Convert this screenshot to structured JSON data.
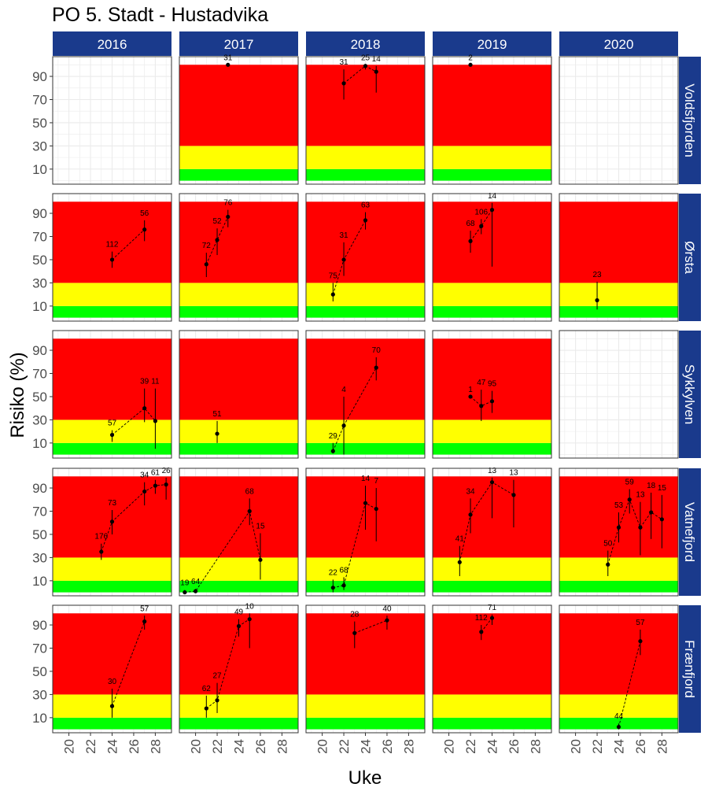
{
  "chart_data": {
    "type": "scatter",
    "title": "PO 5. Stadt - Hustadvika",
    "xlabel": "Uke",
    "ylabel": "Risiko (%)",
    "xlim": [
      18.5,
      29.5
    ],
    "ylim": [
      -3,
      107
    ],
    "x_ticks": [
      20,
      22,
      24,
      26,
      28
    ],
    "y_ticks": [
      10,
      30,
      50,
      70,
      90
    ],
    "grid": true,
    "risk_bands": [
      {
        "from": 0,
        "to": 10,
        "color": "#00ff00"
      },
      {
        "from": 10,
        "to": 30,
        "color": "#ffff00"
      },
      {
        "from": 30,
        "to": 100,
        "color": "#ff0000"
      }
    ],
    "colors": {
      "strip": "#1a3a8c",
      "strip_text": "#ffffff",
      "point": "#000000",
      "panel_border": "#333333",
      "grid": "#ebebeb"
    },
    "column_labels": [
      "2016",
      "2017",
      "2018",
      "2019",
      "2020"
    ],
    "row_labels": [
      "Voldsfjorden",
      "Ørsta",
      "Sykkylven",
      "Vatnefjord",
      "Frænfjord"
    ],
    "panels": [
      {
        "row": 0,
        "col": 0,
        "bands": false,
        "points": []
      },
      {
        "row": 0,
        "col": 1,
        "bands": true,
        "points": [
          {
            "x": 23,
            "y": 100,
            "lo": 100,
            "hi": 100,
            "n": "31"
          }
        ]
      },
      {
        "row": 0,
        "col": 2,
        "bands": true,
        "points": [
          {
            "x": 22,
            "y": 84,
            "lo": 70,
            "hi": 96,
            "n": "31"
          },
          {
            "x": 24,
            "y": 99,
            "lo": 96,
            "hi": 100,
            "n": "25"
          },
          {
            "x": 25,
            "y": 94,
            "lo": 76,
            "hi": 99,
            "n": "14"
          }
        ]
      },
      {
        "row": 0,
        "col": 3,
        "bands": true,
        "points": [
          {
            "x": 22,
            "y": 100,
            "lo": 100,
            "hi": 100,
            "n": "2"
          }
        ]
      },
      {
        "row": 0,
        "col": 4,
        "bands": false,
        "points": []
      },
      {
        "row": 1,
        "col": 0,
        "bands": true,
        "points": [
          {
            "x": 24,
            "y": 50,
            "lo": 43,
            "hi": 57,
            "n": "112"
          },
          {
            "x": 27,
            "y": 76,
            "lo": 66,
            "hi": 84,
            "n": "56"
          }
        ]
      },
      {
        "row": 1,
        "col": 1,
        "bands": true,
        "points": [
          {
            "x": 21,
            "y": 46,
            "lo": 35,
            "hi": 56,
            "n": "72"
          },
          {
            "x": 22,
            "y": 67,
            "lo": 54,
            "hi": 77,
            "n": "52"
          },
          {
            "x": 23,
            "y": 87,
            "lo": 78,
            "hi": 93,
            "n": "76"
          }
        ]
      },
      {
        "row": 1,
        "col": 2,
        "bands": true,
        "points": [
          {
            "x": 21,
            "y": 20,
            "lo": 14,
            "hi": 30,
            "n": "75"
          },
          {
            "x": 22,
            "y": 50,
            "lo": 36,
            "hi": 65,
            "n": "31"
          },
          {
            "x": 24,
            "y": 84,
            "lo": 76,
            "hi": 91,
            "n": "63"
          }
        ]
      },
      {
        "row": 1,
        "col": 3,
        "bands": true,
        "points": [
          {
            "x": 22,
            "y": 66,
            "lo": 56,
            "hi": 75,
            "n": "68"
          },
          {
            "x": 23,
            "y": 79,
            "lo": 72,
            "hi": 85,
            "n": "106"
          },
          {
            "x": 24,
            "y": 93,
            "lo": 44,
            "hi": 99,
            "n": "14"
          }
        ]
      },
      {
        "row": 1,
        "col": 4,
        "bands": true,
        "points": [
          {
            "x": 22,
            "y": 15,
            "lo": 7,
            "hi": 31,
            "n": "23"
          }
        ]
      },
      {
        "row": 2,
        "col": 0,
        "bands": true,
        "points": [
          {
            "x": 24,
            "y": 17,
            "lo": 11,
            "hi": 21,
            "n": "57"
          },
          {
            "x": 27,
            "y": 40,
            "lo": 28,
            "hi": 57,
            "n": "39"
          },
          {
            "x": 28,
            "y": 29,
            "lo": 5,
            "hi": 57,
            "n": "11"
          }
        ]
      },
      {
        "row": 2,
        "col": 1,
        "bands": true,
        "points": [
          {
            "x": 22,
            "y": 18,
            "lo": 10,
            "hi": 29,
            "n": "51"
          }
        ]
      },
      {
        "row": 2,
        "col": 2,
        "bands": true,
        "points": [
          {
            "x": 21,
            "y": 3,
            "lo": 1,
            "hi": 10,
            "n": "29"
          },
          {
            "x": 22,
            "y": 25,
            "lo": 0,
            "hi": 50,
            "n": "4"
          },
          {
            "x": 25,
            "y": 75,
            "lo": 64,
            "hi": 84,
            "n": "70"
          }
        ]
      },
      {
        "row": 2,
        "col": 3,
        "bands": true,
        "points": [
          {
            "x": 22,
            "y": 50,
            "lo": 50,
            "hi": 50,
            "n": "1"
          },
          {
            "x": 23,
            "y": 42,
            "lo": 29,
            "hi": 56,
            "n": "47"
          },
          {
            "x": 24,
            "y": 46,
            "lo": 36,
            "hi": 55,
            "n": "95"
          }
        ]
      },
      {
        "row": 2,
        "col": 4,
        "bands": false,
        "points": []
      },
      {
        "row": 3,
        "col": 0,
        "bands": true,
        "points": [
          {
            "x": 23,
            "y": 35,
            "lo": 28,
            "hi": 42,
            "n": "176"
          },
          {
            "x": 24,
            "y": 61,
            "lo": 50,
            "hi": 71,
            "n": "73"
          },
          {
            "x": 27,
            "y": 87,
            "lo": 75,
            "hi": 95,
            "n": "34"
          },
          {
            "x": 28,
            "y": 92,
            "lo": 85,
            "hi": 97,
            "n": "61"
          },
          {
            "x": 29,
            "y": 93,
            "lo": 80,
            "hi": 99,
            "n": "26"
          }
        ]
      },
      {
        "row": 3,
        "col": 1,
        "bands": true,
        "points": [
          {
            "x": 19,
            "y": 0,
            "lo": 0,
            "hi": 2,
            "n": "19"
          },
          {
            "x": 20,
            "y": 1,
            "lo": 0,
            "hi": 3,
            "n": "64"
          },
          {
            "x": 25,
            "y": 70,
            "lo": 58,
            "hi": 81,
            "n": "68"
          },
          {
            "x": 26,
            "y": 28,
            "lo": 11,
            "hi": 51,
            "n": "15"
          }
        ]
      },
      {
        "row": 3,
        "col": 2,
        "bands": true,
        "points": [
          {
            "x": 21,
            "y": 4,
            "lo": 0,
            "hi": 11,
            "n": "22"
          },
          {
            "x": 22,
            "y": 6,
            "lo": 2,
            "hi": 13,
            "n": "68"
          },
          {
            "x": 24,
            "y": 77,
            "lo": 54,
            "hi": 92,
            "n": "14"
          },
          {
            "x": 25,
            "y": 72,
            "lo": 44,
            "hi": 90,
            "n": "7"
          }
        ]
      },
      {
        "row": 3,
        "col": 3,
        "bands": true,
        "points": [
          {
            "x": 21,
            "y": 26,
            "lo": 14,
            "hi": 40,
            "n": "41"
          },
          {
            "x": 22,
            "y": 67,
            "lo": 51,
            "hi": 81,
            "n": "34"
          },
          {
            "x": 24,
            "y": 95,
            "lo": 64,
            "hi": 99,
            "n": "13"
          },
          {
            "x": 26,
            "y": 84,
            "lo": 56,
            "hi": 97,
            "n": "13"
          }
        ]
      },
      {
        "row": 3,
        "col": 4,
        "bands": true,
        "points": [
          {
            "x": 23,
            "y": 24,
            "lo": 14,
            "hi": 36,
            "n": "50"
          },
          {
            "x": 24,
            "y": 56,
            "lo": 43,
            "hi": 69,
            "n": "53"
          },
          {
            "x": 25,
            "y": 80,
            "lo": 68,
            "hi": 89,
            "n": "59"
          },
          {
            "x": 26,
            "y": 56,
            "lo": 32,
            "hi": 78,
            "n": "13"
          },
          {
            "x": 27,
            "y": 69,
            "lo": 46,
            "hi": 86,
            "n": "18"
          },
          {
            "x": 28,
            "y": 63,
            "lo": 38,
            "hi": 84,
            "n": "15"
          }
        ]
      },
      {
        "row": 4,
        "col": 0,
        "bands": true,
        "points": [
          {
            "x": 24,
            "y": 20,
            "lo": 10,
            "hi": 35,
            "n": "30"
          },
          {
            "x": 27,
            "y": 93,
            "lo": 86,
            "hi": 98,
            "n": "57"
          }
        ]
      },
      {
        "row": 4,
        "col": 1,
        "bands": true,
        "points": [
          {
            "x": 21,
            "y": 18,
            "lo": 10,
            "hi": 29,
            "n": "62"
          },
          {
            "x": 22,
            "y": 25,
            "lo": 14,
            "hi": 40,
            "n": "27"
          },
          {
            "x": 24,
            "y": 89,
            "lo": 80,
            "hi": 95,
            "n": "49"
          },
          {
            "x": 25,
            "y": 95,
            "lo": 70,
            "hi": 100,
            "n": "10"
          }
        ]
      },
      {
        "row": 4,
        "col": 2,
        "bands": true,
        "points": [
          {
            "x": 23,
            "y": 83,
            "lo": 70,
            "hi": 93,
            "n": "28"
          },
          {
            "x": 26,
            "y": 94,
            "lo": 86,
            "hi": 98,
            "n": "40"
          }
        ]
      },
      {
        "row": 4,
        "col": 3,
        "bands": true,
        "points": [
          {
            "x": 23,
            "y": 84,
            "lo": 77,
            "hi": 90,
            "n": "112"
          },
          {
            "x": 24,
            "y": 96,
            "lo": 90,
            "hi": 99,
            "n": "71"
          }
        ]
      },
      {
        "row": 4,
        "col": 4,
        "bands": true,
        "points": [
          {
            "x": 24,
            "y": 2,
            "lo": 0,
            "hi": 5,
            "n": "44"
          },
          {
            "x": 26,
            "y": 76,
            "lo": 64,
            "hi": 86,
            "n": "57"
          }
        ]
      }
    ]
  }
}
